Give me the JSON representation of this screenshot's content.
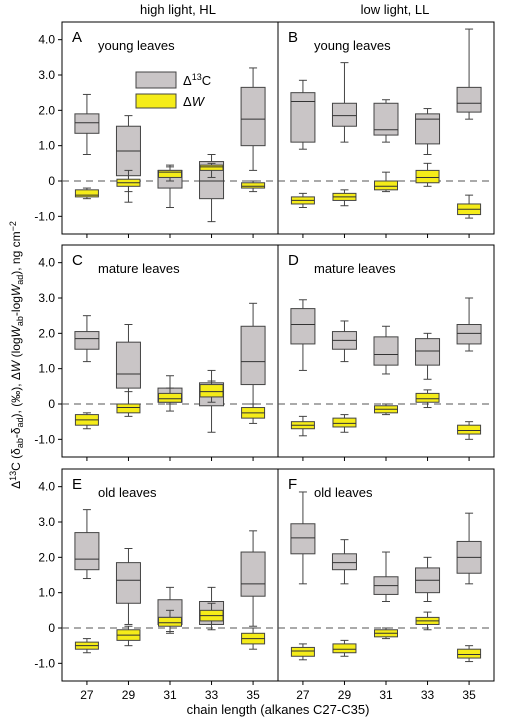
{
  "figure": {
    "col_titles": [
      "high light, HL",
      "low light, LL"
    ],
    "ylabel": "Δ13C (δab-δad), (‰), ΔW (logWab-logWad), ng cm−2",
    "xlabel": "chain length (alkanes C27-C35)",
    "legend": [
      {
        "label": "Δ13C",
        "color": "#c9c5c6"
      },
      {
        "label": "ΔW",
        "color": "#f5ec19"
      }
    ]
  },
  "chart_data": [
    {
      "type": "box",
      "panel": "A",
      "subtitle": "young leaves",
      "light": "high light, HL",
      "categories": [
        "27",
        "29",
        "31",
        "33",
        "35"
      ],
      "ylim": [
        -1.5,
        4.5
      ],
      "yticks": [
        "4.0",
        "3.0",
        "2.0",
        "1.0",
        "0",
        "-1.0"
      ],
      "series": [
        {
          "name": "Δ13C",
          "color": "#c9c5c6",
          "boxes": [
            {
              "min": 0.75,
              "q1": 1.35,
              "median": 1.65,
              "q3": 1.9,
              "max": 2.45
            },
            {
              "min": -0.3,
              "q1": 0.15,
              "median": 0.85,
              "q3": 1.55,
              "max": 1.85
            },
            {
              "min": -0.75,
              "q1": -0.2,
              "median": 0.2,
              "q3": 0.3,
              "max": 0.45
            },
            {
              "min": -1.15,
              "q1": -0.5,
              "median": 0.0,
              "q3": 0.55,
              "max": 0.75
            },
            {
              "min": 0.3,
              "q1": 1.0,
              "median": 1.75,
              "q3": 2.65,
              "max": 3.2
            }
          ]
        },
        {
          "name": "ΔW",
          "color": "#f5ec19",
          "boxes": [
            {
              "min": -0.5,
              "q1": -0.45,
              "median": -0.4,
              "q3": -0.25,
              "max": -0.2
            },
            {
              "min": -0.6,
              "q1": -0.15,
              "median": -0.05,
              "q3": 0.05,
              "max": 0.3
            },
            {
              "min": 0.0,
              "q1": 0.1,
              "median": 0.25,
              "q3": 0.3,
              "max": 0.4
            },
            {
              "min": 0.1,
              "q1": 0.3,
              "median": 0.4,
              "q3": 0.45,
              "max": 0.5
            },
            {
              "min": -0.3,
              "q1": -0.2,
              "median": -0.15,
              "q3": -0.05,
              "max": 0.0
            }
          ]
        }
      ]
    },
    {
      "type": "box",
      "panel": "B",
      "subtitle": "young leaves",
      "light": "low light, LL",
      "categories": [
        "27",
        "29",
        "31",
        "33",
        "35"
      ],
      "ylim": [
        -1.5,
        4.5
      ],
      "yticks": [
        "4.0",
        "3.0",
        "2.0",
        "1.0",
        "0",
        "-1.0"
      ],
      "series": [
        {
          "name": "Δ13C",
          "color": "#c9c5c6",
          "boxes": [
            {
              "min": 0.9,
              "q1": 1.1,
              "median": 2.25,
              "q3": 2.5,
              "max": 2.85
            },
            {
              "min": 1.1,
              "q1": 1.55,
              "median": 1.85,
              "q3": 2.2,
              "max": 3.35
            },
            {
              "min": 1.1,
              "q1": 1.3,
              "median": 1.45,
              "q3": 2.2,
              "max": 2.3
            },
            {
              "min": 0.75,
              "q1": 1.05,
              "median": 1.75,
              "q3": 1.9,
              "max": 2.05
            },
            {
              "min": 1.75,
              "q1": 1.95,
              "median": 2.2,
              "q3": 2.65,
              "max": 4.3
            }
          ]
        },
        {
          "name": "ΔW",
          "color": "#f5ec19",
          "boxes": [
            {
              "min": -0.75,
              "q1": -0.65,
              "median": -0.55,
              "q3": -0.45,
              "max": -0.35
            },
            {
              "min": -0.7,
              "q1": -0.55,
              "median": -0.45,
              "q3": -0.35,
              "max": -0.25
            },
            {
              "min": -0.3,
              "q1": -0.25,
              "median": -0.15,
              "q3": 0.0,
              "max": 0.25
            },
            {
              "min": -0.15,
              "q1": -0.05,
              "median": 0.1,
              "q3": 0.3,
              "max": 0.5
            },
            {
              "min": -1.05,
              "q1": -0.95,
              "median": -0.8,
              "q3": -0.65,
              "max": -0.4
            }
          ]
        }
      ]
    },
    {
      "type": "box",
      "panel": "C",
      "subtitle": "mature leaves",
      "light": "high light, HL",
      "categories": [
        "27",
        "29",
        "31",
        "33",
        "35"
      ],
      "ylim": [
        -1.5,
        4.5
      ],
      "yticks": [
        "4.0",
        "3.0",
        "2.0",
        "1.0",
        "0",
        "-1.0"
      ],
      "series": [
        {
          "name": "Δ13C",
          "color": "#c9c5c6",
          "boxes": [
            {
              "min": 1.2,
              "q1": 1.55,
              "median": 1.85,
              "q3": 2.05,
              "max": 2.5
            },
            {
              "min": -0.1,
              "q1": 0.45,
              "median": 0.85,
              "q3": 1.75,
              "max": 2.25
            },
            {
              "min": -0.2,
              "q1": 0.05,
              "median": 0.25,
              "q3": 0.45,
              "max": 0.8
            },
            {
              "min": -0.8,
              "q1": -0.05,
              "median": 0.3,
              "q3": 0.6,
              "max": 0.95
            },
            {
              "min": -0.2,
              "q1": 0.55,
              "median": 1.2,
              "q3": 2.2,
              "max": 2.85
            }
          ]
        },
        {
          "name": "ΔW",
          "color": "#f5ec19",
          "boxes": [
            {
              "min": -0.7,
              "q1": -0.6,
              "median": -0.45,
              "q3": -0.3,
              "max": -0.25
            },
            {
              "min": -0.35,
              "q1": -0.25,
              "median": -0.1,
              "q3": 0.0,
              "max": 0.35
            },
            {
              "min": 0.0,
              "q1": 0.05,
              "median": 0.15,
              "q3": 0.3,
              "max": 0.45
            },
            {
              "min": 0.05,
              "q1": 0.2,
              "median": 0.35,
              "q3": 0.55,
              "max": 0.65
            },
            {
              "min": -0.55,
              "q1": -0.4,
              "median": -0.25,
              "q3": -0.1,
              "max": 0.0
            }
          ]
        }
      ]
    },
    {
      "type": "box",
      "panel": "D",
      "subtitle": "mature leaves",
      "light": "low light, LL",
      "categories": [
        "27",
        "29",
        "31",
        "33",
        "35"
      ],
      "ylim": [
        -1.5,
        4.5
      ],
      "yticks": [
        "4.0",
        "3.0",
        "2.0",
        "1.0",
        "0",
        "-1.0"
      ],
      "series": [
        {
          "name": "Δ13C",
          "color": "#c9c5c6",
          "boxes": [
            {
              "min": 0.95,
              "q1": 1.7,
              "median": 2.25,
              "q3": 2.7,
              "max": 2.95
            },
            {
              "min": 1.2,
              "q1": 1.55,
              "median": 1.8,
              "q3": 2.05,
              "max": 2.35
            },
            {
              "min": 0.85,
              "q1": 1.1,
              "median": 1.4,
              "q3": 1.9,
              "max": 2.2
            },
            {
              "min": 0.7,
              "q1": 1.1,
              "median": 1.5,
              "q3": 1.85,
              "max": 2.0
            },
            {
              "min": 1.5,
              "q1": 1.7,
              "median": 2.0,
              "q3": 2.25,
              "max": 3.0
            }
          ]
        },
        {
          "name": "ΔW",
          "color": "#f5ec19",
          "boxes": [
            {
              "min": -0.9,
              "q1": -0.7,
              "median": -0.6,
              "q3": -0.5,
              "max": -0.35
            },
            {
              "min": -0.8,
              "q1": -0.65,
              "median": -0.55,
              "q3": -0.4,
              "max": -0.3
            },
            {
              "min": -0.3,
              "q1": -0.25,
              "median": -0.15,
              "q3": -0.05,
              "max": 0.0
            },
            {
              "min": -0.1,
              "q1": 0.05,
              "median": 0.15,
              "q3": 0.3,
              "max": 0.4
            },
            {
              "min": -1.0,
              "q1": -0.85,
              "median": -0.75,
              "q3": -0.6,
              "max": -0.5
            }
          ]
        }
      ]
    },
    {
      "type": "box",
      "panel": "E",
      "subtitle": "old leaves",
      "light": "high light, HL",
      "categories": [
        "27",
        "29",
        "31",
        "33",
        "35"
      ],
      "ylim": [
        -1.5,
        4.5
      ],
      "yticks": [
        "4.0",
        "3.0",
        "2.0",
        "1.0",
        "0",
        "-1.0"
      ],
      "series": [
        {
          "name": "Δ13C",
          "color": "#c9c5c6",
          "boxes": [
            {
              "min": 1.4,
              "q1": 1.65,
              "median": 1.95,
              "q3": 2.7,
              "max": 3.35
            },
            {
              "min": 0.1,
              "q1": 0.7,
              "median": 1.35,
              "q3": 1.85,
              "max": 2.25
            },
            {
              "min": -0.15,
              "q1": 0.1,
              "median": 0.3,
              "q3": 0.8,
              "max": 1.15
            },
            {
              "min": -0.05,
              "q1": 0.1,
              "median": 0.45,
              "q3": 0.75,
              "max": 1.15
            },
            {
              "min": 0.05,
              "q1": 0.9,
              "median": 1.25,
              "q3": 2.15,
              "max": 2.75
            }
          ]
        },
        {
          "name": "ΔW",
          "color": "#f5ec19",
          "boxes": [
            {
              "min": -0.7,
              "q1": -0.6,
              "median": -0.5,
              "q3": -0.4,
              "max": -0.3
            },
            {
              "min": -0.5,
              "q1": -0.35,
              "median": -0.2,
              "q3": -0.05,
              "max": 0.05
            },
            {
              "min": -0.1,
              "q1": 0.05,
              "median": 0.15,
              "q3": 0.3,
              "max": 0.5
            },
            {
              "min": 0.1,
              "q1": 0.2,
              "median": 0.35,
              "q3": 0.5,
              "max": 0.7
            },
            {
              "min": -0.6,
              "q1": -0.45,
              "median": -0.3,
              "q3": -0.15,
              "max": 0.0
            }
          ]
        }
      ]
    },
    {
      "type": "box",
      "panel": "F",
      "subtitle": "old leaves",
      "light": "low light, LL",
      "categories": [
        "27",
        "29",
        "31",
        "33",
        "35"
      ],
      "ylim": [
        -1.5,
        4.5
      ],
      "yticks": [
        "4.0",
        "3.0",
        "2.0",
        "1.0",
        "0",
        "-1.0"
      ],
      "series": [
        {
          "name": "Δ13C",
          "color": "#c9c5c6",
          "boxes": [
            {
              "min": 1.25,
              "q1": 2.1,
              "median": 2.55,
              "q3": 2.95,
              "max": 3.85
            },
            {
              "min": 1.25,
              "q1": 1.65,
              "median": 1.85,
              "q3": 2.1,
              "max": 2.5
            },
            {
              "min": 0.75,
              "q1": 0.95,
              "median": 1.2,
              "q3": 1.45,
              "max": 2.15
            },
            {
              "min": 0.75,
              "q1": 1.0,
              "median": 1.35,
              "q3": 1.7,
              "max": 2.0
            },
            {
              "min": 1.25,
              "q1": 1.55,
              "median": 2.0,
              "q3": 2.45,
              "max": 3.25
            }
          ]
        },
        {
          "name": "ΔW",
          "color": "#f5ec19",
          "boxes": [
            {
              "min": -0.9,
              "q1": -0.8,
              "median": -0.65,
              "q3": -0.55,
              "max": -0.45
            },
            {
              "min": -0.8,
              "q1": -0.7,
              "median": -0.6,
              "q3": -0.45,
              "max": -0.35
            },
            {
              "min": -0.3,
              "q1": -0.25,
              "median": -0.15,
              "q3": -0.05,
              "max": 0.0
            },
            {
              "min": -0.05,
              "q1": 0.1,
              "median": 0.2,
              "q3": 0.3,
              "max": 0.45
            },
            {
              "min": -0.95,
              "q1": -0.85,
              "median": -0.75,
              "q3": -0.6,
              "max": -0.5
            }
          ]
        }
      ]
    }
  ]
}
